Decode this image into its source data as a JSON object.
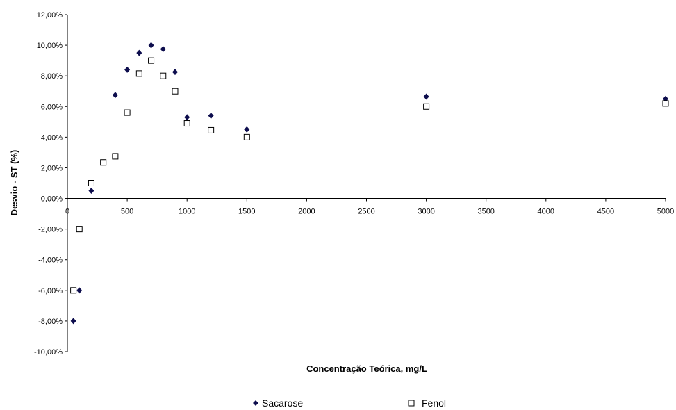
{
  "chart_data": {
    "type": "scatter",
    "title": "",
    "xlabel": "Concentração Teórica, mg/L",
    "ylabel": "Desvio - ST (%)",
    "xlim": [
      0,
      5000
    ],
    "ylim": [
      -0.1,
      0.12
    ],
    "x_ticks": [
      0,
      500,
      1000,
      1500,
      2000,
      2500,
      3000,
      3500,
      4000,
      4500,
      5000
    ],
    "x_tick_labels": [
      "0",
      "500",
      "1000",
      "1500",
      "2000",
      "2500",
      "3000",
      "3500",
      "4000",
      "4500",
      "5000"
    ],
    "y_ticks": [
      -0.1,
      -0.08,
      -0.06,
      -0.04,
      -0.02,
      0,
      0.02,
      0.04,
      0.06,
      0.08,
      0.1,
      0.12
    ],
    "y_tick_labels": [
      "-10,00%",
      "-8,00%",
      "-6,00%",
      "-4,00%",
      "-2,00%",
      "0,00%",
      "2,00%",
      "4,00%",
      "6,00%",
      "8,00%",
      "10,00%",
      "12,00%"
    ],
    "grid": false,
    "legend_position": "bottom",
    "series": [
      {
        "name": "Sacarose",
        "marker": "diamond",
        "color": "#0d0d4d",
        "points": [
          {
            "x": 50,
            "y": -0.08
          },
          {
            "x": 100,
            "y": -0.06
          },
          {
            "x": 200,
            "y": 0.005
          },
          {
            "x": 400,
            "y": 0.0675
          },
          {
            "x": 500,
            "y": 0.084
          },
          {
            "x": 600,
            "y": 0.095
          },
          {
            "x": 700,
            "y": 0.1
          },
          {
            "x": 800,
            "y": 0.0975
          },
          {
            "x": 900,
            "y": 0.0825
          },
          {
            "x": 1000,
            "y": 0.053
          },
          {
            "x": 1200,
            "y": 0.054
          },
          {
            "x": 1500,
            "y": 0.045
          },
          {
            "x": 3000,
            "y": 0.0665
          },
          {
            "x": 5000,
            "y": 0.065
          }
        ]
      },
      {
        "name": "Fenol",
        "marker": "square",
        "color": "#000000",
        "points": [
          {
            "x": 50,
            "y": -0.06
          },
          {
            "x": 100,
            "y": -0.02
          },
          {
            "x": 200,
            "y": 0.01
          },
          {
            "x": 300,
            "y": 0.0235
          },
          {
            "x": 400,
            "y": 0.0275
          },
          {
            "x": 500,
            "y": 0.056
          },
          {
            "x": 600,
            "y": 0.0815
          },
          {
            "x": 700,
            "y": 0.09
          },
          {
            "x": 800,
            "y": 0.08
          },
          {
            "x": 900,
            "y": 0.07
          },
          {
            "x": 1000,
            "y": 0.049
          },
          {
            "x": 1200,
            "y": 0.0445
          },
          {
            "x": 1500,
            "y": 0.04
          },
          {
            "x": 3000,
            "y": 0.06
          },
          {
            "x": 5000,
            "y": 0.062
          }
        ]
      }
    ]
  }
}
